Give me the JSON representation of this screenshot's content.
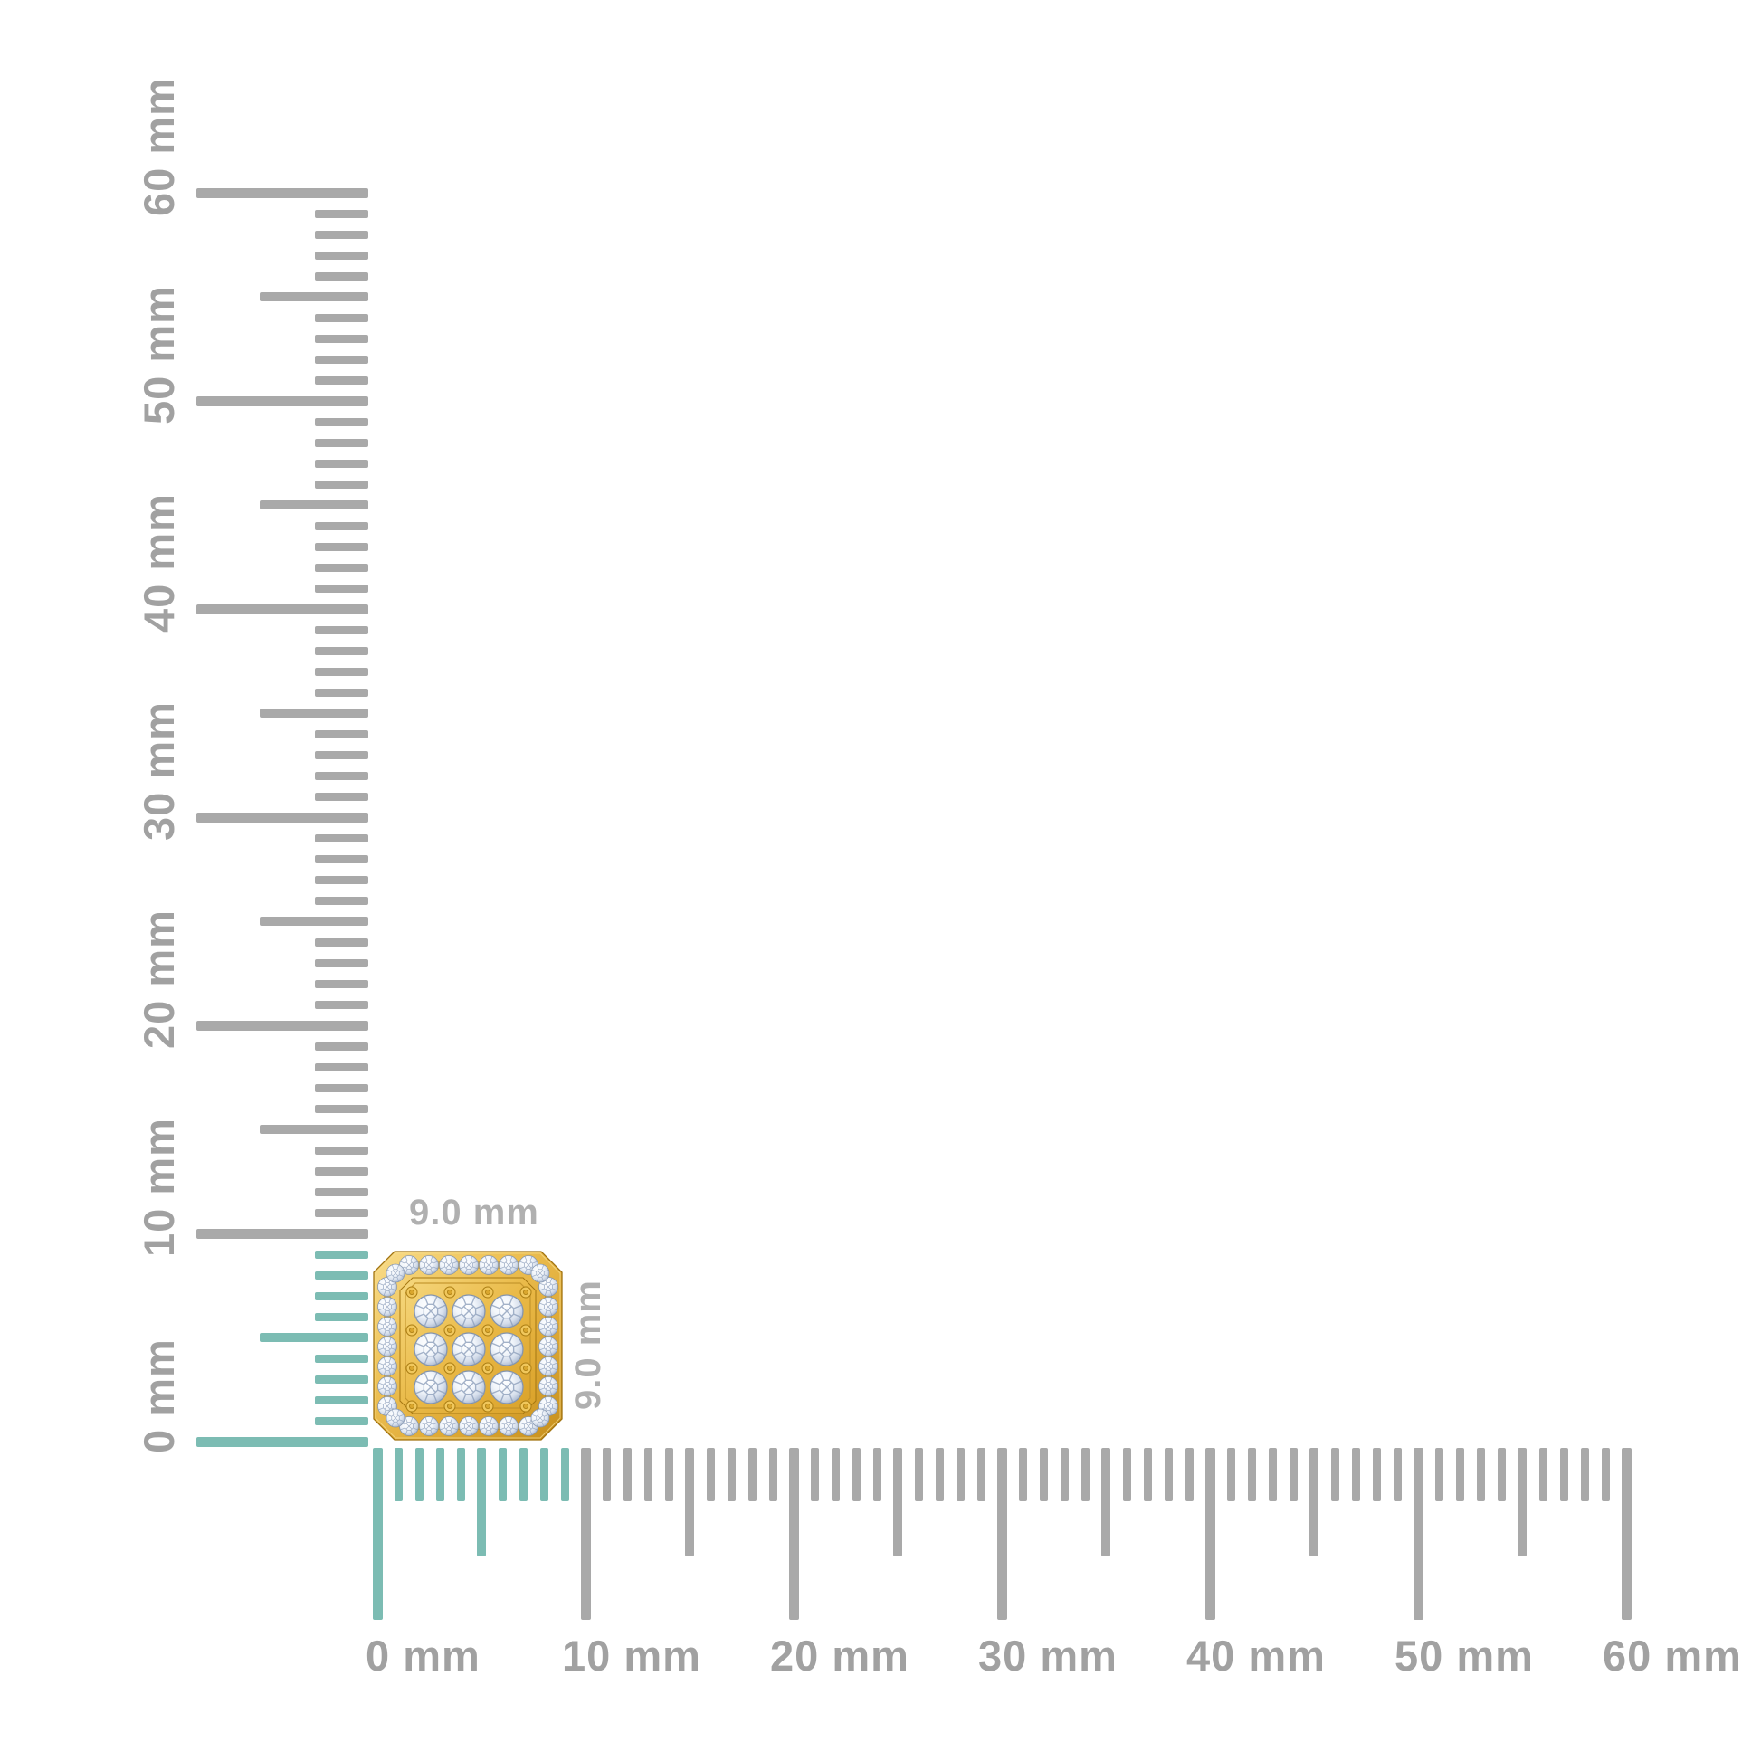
{
  "page": {
    "background": "#ffffff"
  },
  "product": {
    "name": "Yellow gold square cluster stud earring: 3x3 grid of round diamonds inside a pave diamond halo frame with chamfered corners",
    "width_label": "9.0 mm",
    "height_label": "9.0 mm",
    "colors": {
      "gold": "#e8b845",
      "gold_dark": "#c68f1d",
      "diamond": "#dfe7f2"
    }
  },
  "rulers": {
    "unit": "mm",
    "min_mm": 0,
    "max_mm": 60,
    "major_step_mm": 10,
    "medium_step_mm": 5,
    "minor_step_mm": 1,
    "highlight_span_mm": 9,
    "colors": {
      "tick": "#a9a9a9",
      "highlight": "#7cbcb3",
      "label": "#a1a1a1",
      "dimension_label": "#b0b0b0"
    },
    "vertical": {
      "labels": [
        "0 mm",
        "10 mm",
        "20 mm",
        "30 mm",
        "40 mm",
        "50 mm",
        "60 mm"
      ]
    },
    "horizontal": {
      "labels": [
        "0 mm",
        "10 mm",
        "20 mm",
        "30 mm",
        "40 mm",
        "50 mm",
        "60 mm"
      ]
    }
  }
}
